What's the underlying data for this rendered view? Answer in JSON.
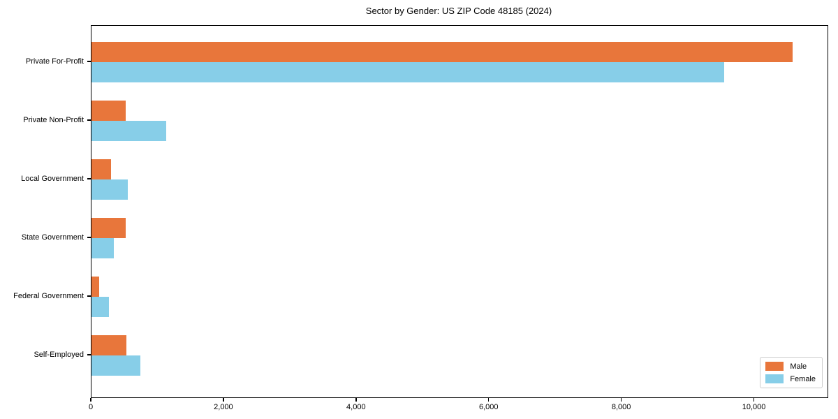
{
  "title": "Sector by Gender: US ZIP Code 48185 (2024)",
  "colors": {
    "male": "#e8763b",
    "female": "#87cee8",
    "spine": "#000000",
    "legend_border": "#cccccc",
    "background": "#ffffff"
  },
  "chart_data": {
    "type": "bar",
    "orientation": "horizontal",
    "title": "Sector by Gender: US ZIP Code 48185 (2024)",
    "categories": [
      "Private For-Profit",
      "Private Non-Profit",
      "Local Government",
      "State Government",
      "Federal Government",
      "Self-Employed"
    ],
    "series": [
      {
        "name": "Male",
        "color": "#e8763b",
        "values": [
          10570,
          520,
          290,
          515,
          115,
          530
        ]
      },
      {
        "name": "Female",
        "color": "#87cee8",
        "values": [
          9540,
          1130,
          550,
          340,
          260,
          740
        ]
      }
    ],
    "xlabel": "",
    "ylabel": "",
    "xlim": [
      0,
      11100
    ],
    "x_ticks": [
      {
        "value": 0,
        "label": "0"
      },
      {
        "value": 2000,
        "label": "2,000"
      },
      {
        "value": 4000,
        "label": "4,000"
      },
      {
        "value": 6000,
        "label": "6,000"
      },
      {
        "value": 8000,
        "label": "8,000"
      },
      {
        "value": 10000,
        "label": "10,000"
      }
    ],
    "grid": false,
    "legend": {
      "position": "lower right",
      "entries": [
        "Male",
        "Female"
      ]
    }
  }
}
